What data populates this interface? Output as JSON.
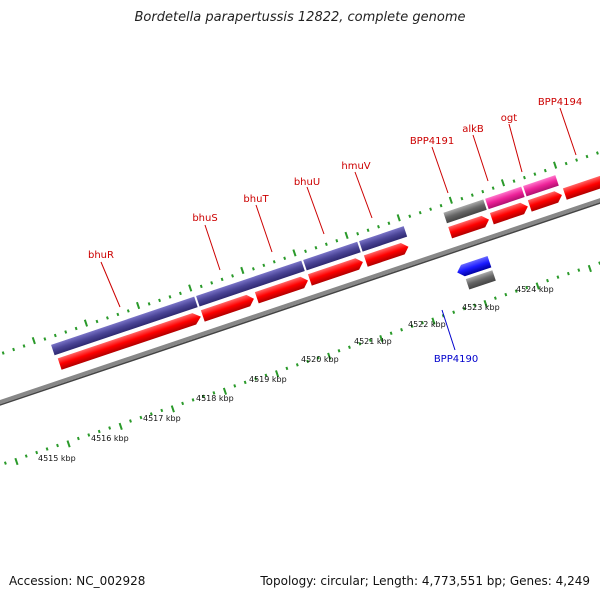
{
  "title": "Bordetella parapertussis 12822, complete genome",
  "accession": "Accession: NC_002928",
  "topology": "Topology: circular; Length: 4,773,551 bp; Genes: 4,249",
  "colors": {
    "forward_gene_label": "#cc0000",
    "reverse_gene_label": "#0000cc",
    "cds_arrow": "#ff1a1a",
    "gene_bar_blue": "#4a4496",
    "gene_bar_pink": "#ee2299",
    "gene_bar_gray": "#666666",
    "reverse_arrow": "#1a1aff",
    "ticks": "#2a9a2a",
    "backbone": "#888888"
  },
  "gene_labels": [
    {
      "id": "bhuR",
      "text": "bhuR",
      "strand": "forward"
    },
    {
      "id": "bhuS",
      "text": "bhuS",
      "strand": "forward"
    },
    {
      "id": "bhuT",
      "text": "bhuT",
      "strand": "forward"
    },
    {
      "id": "bhuU",
      "text": "bhuU",
      "strand": "forward"
    },
    {
      "id": "hmuV",
      "text": "hmuV",
      "strand": "forward"
    },
    {
      "id": "BPP4191",
      "text": "BPP4191",
      "strand": "forward"
    },
    {
      "id": "alkB",
      "text": "alkB",
      "strand": "forward"
    },
    {
      "id": "ogt",
      "text": "ogt",
      "strand": "forward"
    },
    {
      "id": "BPP4194",
      "text": "BPP4194",
      "strand": "forward"
    },
    {
      "id": "BPP4190",
      "text": "BPP4190",
      "strand": "reverse"
    }
  ],
  "kbp_labels": [
    "4515 kbp",
    "4516 kbp",
    "4517 kbp",
    "4518 kbp",
    "4519 kbp",
    "4520 kbp",
    "4521 kbp",
    "4522 kbp",
    "4523 kbp",
    "4524 kbp"
  ]
}
